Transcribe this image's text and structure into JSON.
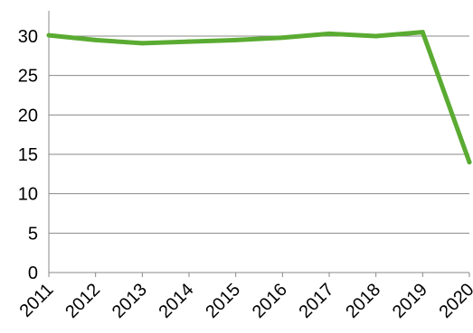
{
  "chart_data": {
    "type": "line",
    "x": [
      "2011",
      "2012",
      "2013",
      "2014",
      "2015",
      "2016",
      "2017",
      "2018",
      "2019",
      "2020"
    ],
    "series": [
      {
        "values": [
          30.1,
          29.5,
          29.1,
          29.3,
          29.5,
          29.8,
          30.3,
          30.0,
          30.5,
          14.0
        ]
      }
    ],
    "ylim": [
      0,
      30
    ],
    "yticks": [
      0,
      5,
      10,
      15,
      20,
      25,
      30
    ],
    "title": "",
    "xlabel": "",
    "ylabel": "",
    "grid": true,
    "legend": "none",
    "colors": {
      "line": "#5aab32",
      "grid": "#888888",
      "axis": "#888888",
      "text": "#000000"
    }
  }
}
